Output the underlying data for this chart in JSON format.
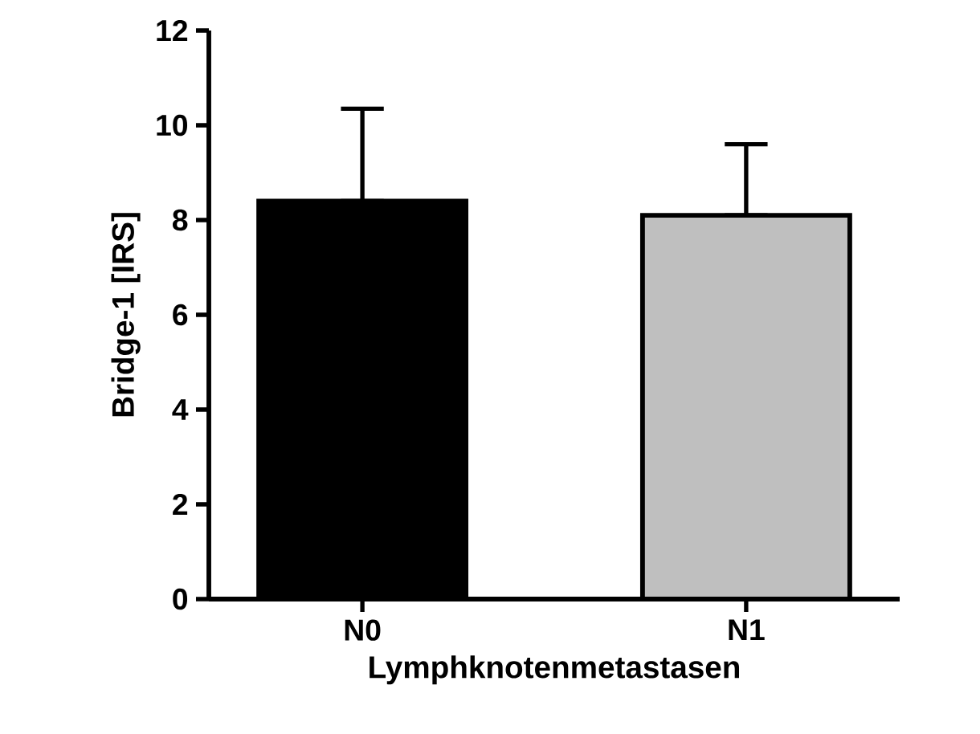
{
  "chart_data": {
    "type": "bar",
    "xlabel": "Lymphknotenmetastasen",
    "ylabel": "Bridge-1 [IRS]",
    "categories": [
      "N0",
      "N1"
    ],
    "values": [
      8.4,
      8.1
    ],
    "colors": [
      "#000000",
      "#bfbfbf"
    ],
    "errors": [
      [
        8.4,
        10.35
      ],
      [
        8.1,
        9.6
      ]
    ],
    "ylim": [
      0,
      12
    ],
    "yticks": [
      0,
      2,
      4,
      6,
      8,
      10,
      12
    ],
    "grid": false
  }
}
